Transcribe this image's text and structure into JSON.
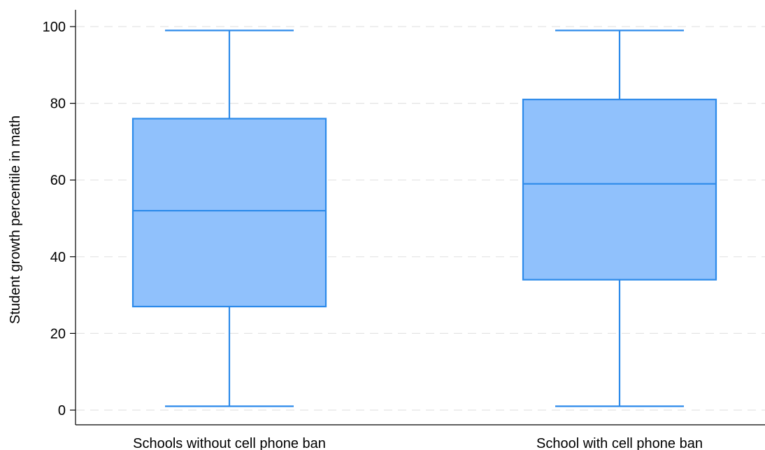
{
  "chart_data": {
    "type": "box",
    "ylabel": "Student growth percentile in math",
    "xlabel": "",
    "ylim": [
      0,
      100
    ],
    "yticks": [
      0,
      20,
      40,
      60,
      80,
      100
    ],
    "grid": "horizontal dashed",
    "categories": [
      "Schools without cell phone ban",
      "School with cell phone ban"
    ],
    "boxes": [
      {
        "category": "Schools without cell phone ban",
        "min": 1,
        "q1": 27,
        "median": 52,
        "q3": 76,
        "max": 99
      },
      {
        "category": "School with cell phone ban",
        "min": 1,
        "q1": 34,
        "median": 59,
        "q3": 81,
        "max": 99
      }
    ],
    "colors": {
      "box_fill": "#90c1fc",
      "box_stroke": "#2c8aea",
      "grid": "#e4e4e4",
      "axis": "#000000"
    }
  }
}
